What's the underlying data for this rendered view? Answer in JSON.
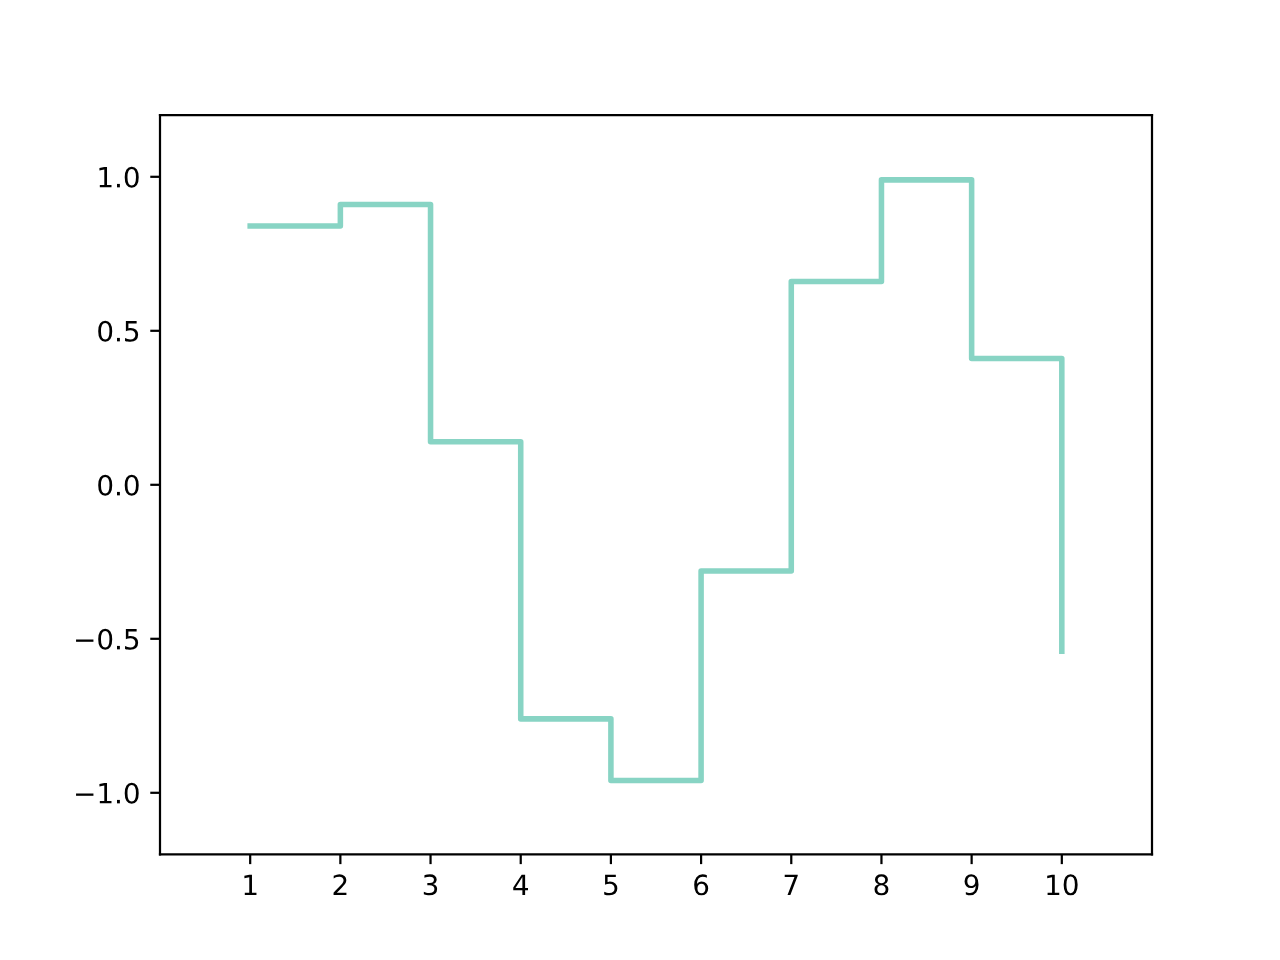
{
  "chart_data": {
    "type": "step",
    "x": [
      1,
      2,
      3,
      4,
      5,
      6,
      7,
      8,
      9,
      10
    ],
    "series": [
      {
        "color": "#88d4c4",
        "values": [
          0.84,
          0.91,
          0.14,
          -0.76,
          -0.96,
          -0.28,
          0.66,
          0.99,
          0.41,
          -0.54
        ]
      }
    ],
    "xlim": [
      0,
      11
    ],
    "ylim": [
      -1.2,
      1.2
    ],
    "xticks": [
      1,
      2,
      3,
      4,
      5,
      6,
      7,
      8,
      9,
      10
    ],
    "yticks": [
      {
        "value": -1,
        "label": "−1.0"
      },
      {
        "value": -0.5,
        "label": "−0.5"
      },
      {
        "value": 0,
        "label": "0.0"
      },
      {
        "value": 0.5,
        "label": "0.5"
      },
      {
        "value": 1,
        "label": "1.0"
      }
    ],
    "grid": false,
    "marker": "none",
    "line_style": "solid"
  }
}
